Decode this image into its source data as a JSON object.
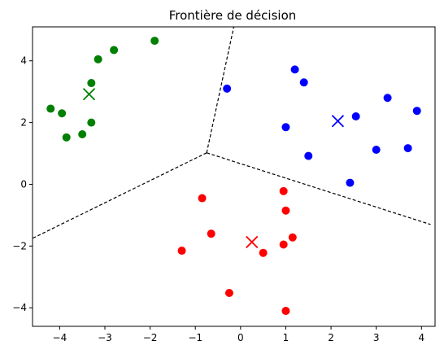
{
  "chart_data": {
    "type": "scatter",
    "title": "Frontière de décision",
    "xlabel": "",
    "ylabel": "",
    "xlim": [
      -4.6,
      4.3
    ],
    "ylim": [
      -4.6,
      5.1
    ],
    "xticks": [
      -4,
      -3,
      -2,
      -1,
      0,
      1,
      2,
      3,
      4
    ],
    "yticks": [
      -4,
      -2,
      0,
      2,
      4
    ],
    "grid": false,
    "series": [
      {
        "color": "#008000",
        "points": [
          [
            -1.9,
            4.65
          ],
          [
            -2.8,
            4.35
          ],
          [
            -3.15,
            4.05
          ],
          [
            -3.3,
            3.28
          ],
          [
            -4.2,
            2.45
          ],
          [
            -3.95,
            2.3
          ],
          [
            -3.3,
            2.0
          ],
          [
            -3.5,
            1.62
          ],
          [
            -3.85,
            1.52
          ]
        ],
        "centroid": [
          -3.35,
          2.92
        ]
      },
      {
        "color": "#0000ff",
        "points": [
          [
            1.2,
            3.72
          ],
          [
            1.4,
            3.3
          ],
          [
            -0.3,
            3.1
          ],
          [
            3.25,
            2.8
          ],
          [
            3.9,
            2.38
          ],
          [
            2.55,
            2.2
          ],
          [
            1.0,
            1.85
          ],
          [
            3.0,
            1.12
          ],
          [
            3.7,
            1.17
          ],
          [
            1.5,
            0.92
          ],
          [
            2.42,
            0.05
          ]
        ],
        "centroid": [
          2.15,
          2.05
        ]
      },
      {
        "color": "#ff0000",
        "points": [
          [
            0.95,
            -0.22
          ],
          [
            -0.85,
            -0.45
          ],
          [
            1.0,
            -0.85
          ],
          [
            -0.65,
            -1.6
          ],
          [
            1.15,
            -1.72
          ],
          [
            0.95,
            -1.95
          ],
          [
            -1.3,
            -2.15
          ],
          [
            0.5,
            -2.22
          ],
          [
            -0.25,
            -3.52
          ],
          [
            1.0,
            -4.1
          ]
        ],
        "centroid": [
          0.25,
          -1.87
        ]
      }
    ],
    "boundaries": [
      [
        [
          -0.75,
          1.02
        ],
        [
          -0.15,
          5.1
        ]
      ],
      [
        [
          -0.75,
          1.02
        ],
        [
          -4.6,
          -1.75
        ]
      ],
      [
        [
          -0.75,
          1.02
        ],
        [
          4.2,
          -1.3
        ]
      ]
    ]
  }
}
